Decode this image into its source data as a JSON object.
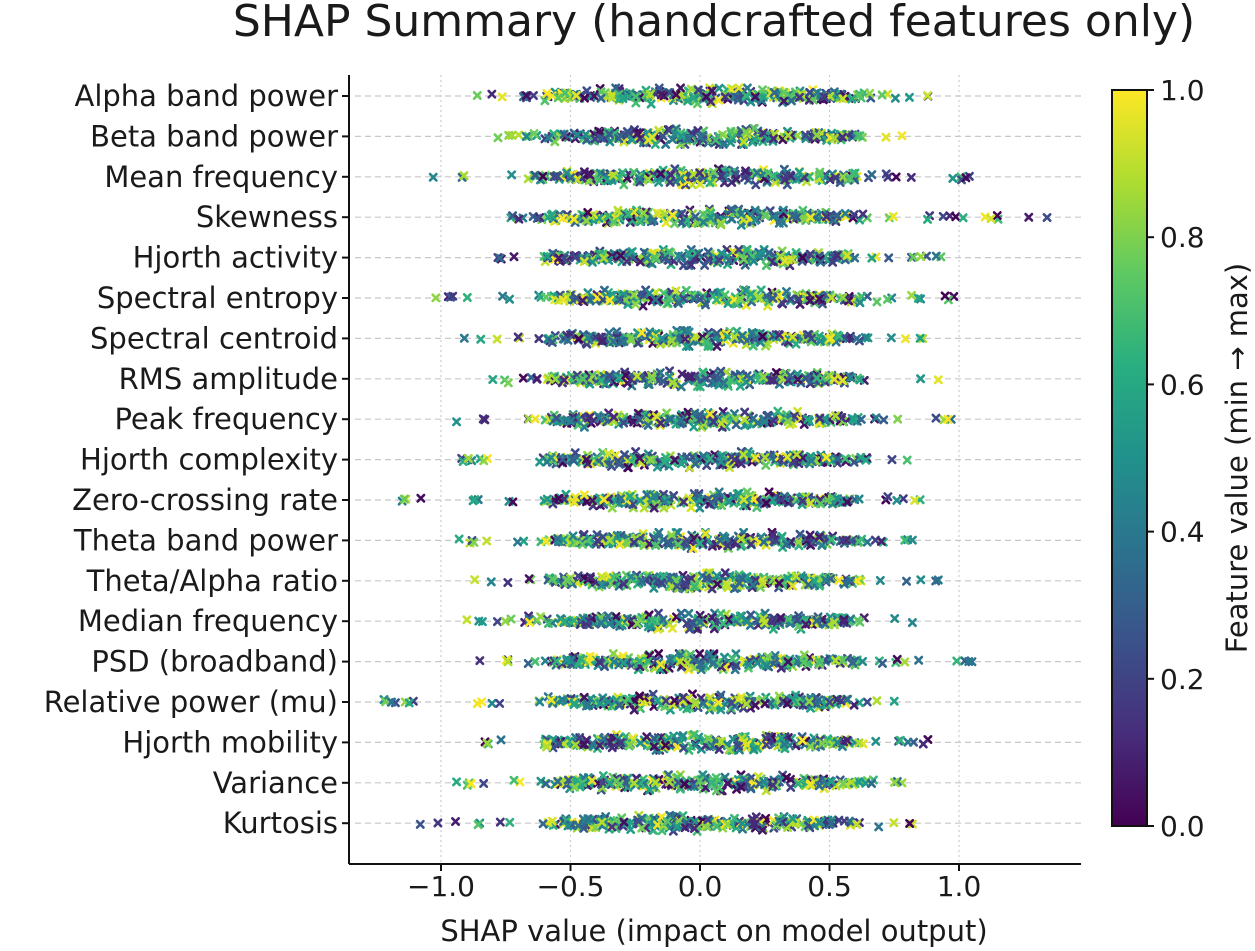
{
  "chart_data": {
    "type": "scatter",
    "title": "SHAP Summary (handcrafted features only)",
    "xlabel": "SHAP value (impact on model output)",
    "ylabel": "",
    "xlim": [
      -1.35,
      1.45
    ],
    "xticks": [
      -1.0,
      -0.5,
      0.0,
      0.5,
      1.0
    ],
    "xtick_labels": [
      "−1.0",
      "−0.5",
      "0.0",
      "0.5",
      "1.0"
    ],
    "features": [
      "Alpha band power",
      "Beta band power",
      "Mean frequency",
      "Skewness",
      "Hjorth activity",
      "Spectral entropy",
      "Spectral centroid",
      "RMS amplitude",
      "Peak frequency",
      "Hjorth complexity",
      "Zero-crossing rate",
      "Theta band power",
      "Theta/Alpha ratio",
      "Median frequency",
      "PSD (broadband)",
      "Relative power (mu)",
      "Hjorth mobility",
      "Variance",
      "Kurtosis"
    ],
    "feature_ranges": [
      [
        -0.86,
        0.88
      ],
      [
        -0.78,
        0.78
      ],
      [
        -1.03,
        1.04
      ],
      [
        -0.73,
        1.34
      ],
      [
        -0.78,
        0.93
      ],
      [
        -1.02,
        0.98
      ],
      [
        -0.91,
        0.86
      ],
      [
        -0.8,
        0.92
      ],
      [
        -0.94,
        0.97
      ],
      [
        -0.92,
        0.8
      ],
      [
        -1.15,
        0.85
      ],
      [
        -0.93,
        0.82
      ],
      [
        -0.87,
        0.92
      ],
      [
        -0.9,
        0.82
      ],
      [
        -0.85,
        1.05
      ],
      [
        -1.22,
        0.75
      ],
      [
        -0.83,
        0.88
      ],
      [
        -0.94,
        0.78
      ],
      [
        -1.08,
        0.82
      ]
    ],
    "points_per_feature": 260,
    "colorbar": {
      "label": "Feature value (min → max)",
      "ticks": [
        "0.0",
        "0.2",
        "0.4",
        "0.6",
        "0.8",
        "1.0"
      ],
      "range": [
        0.0,
        1.0
      ],
      "colormap": "viridis"
    },
    "colors": [
      "#440154",
      "#3b528b",
      "#21918c",
      "#5ec962",
      "#fde725"
    ]
  }
}
